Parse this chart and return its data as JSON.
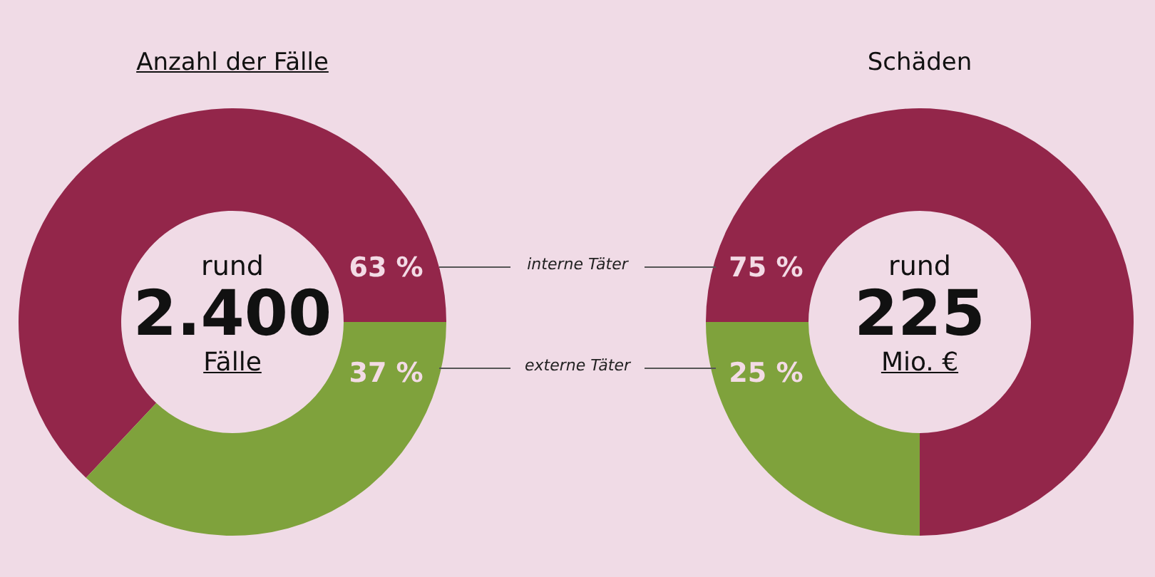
{
  "chart_data": [
    {
      "type": "donut",
      "title": "Anzahl der Fälle",
      "categories": [
        "interne Täter",
        "externe Täter"
      ],
      "values": [
        63,
        37
      ],
      "colors": [
        "#93264a",
        "#7fa23c"
      ],
      "value_labels": [
        "63 %",
        "37 %"
      ],
      "annotations": [
        "rund",
        "2.400",
        "Fälle"
      ]
    },
    {
      "type": "donut",
      "title": "Schäden",
      "categories": [
        null,
        null
      ],
      "values": [
        75,
        25
      ],
      "colors": [
        "#93264a",
        "#7fa23c"
      ],
      "value_labels": [
        "75 %",
        "25 %"
      ],
      "annotations": [
        "rund",
        "225",
        "Mio. €"
      ]
    }
  ]
}
